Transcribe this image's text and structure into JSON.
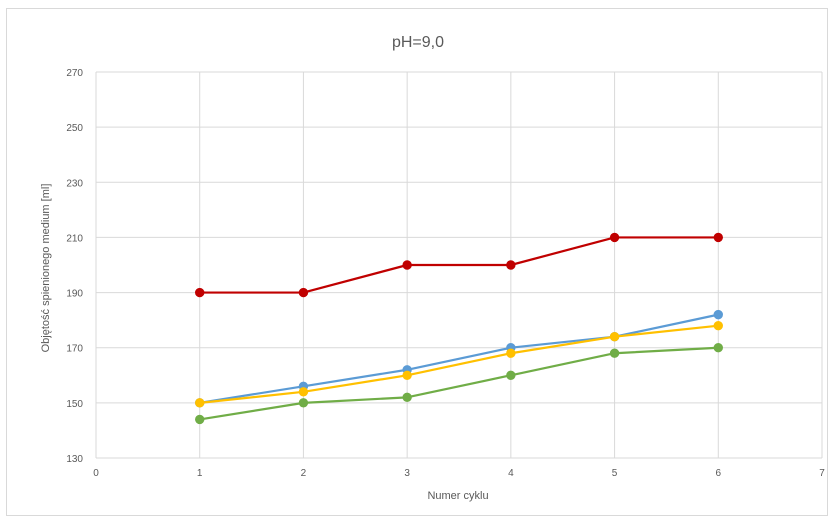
{
  "chart_data": {
    "type": "line",
    "title": "pH=9,0",
    "xlabel": "Numer cyklu",
    "ylabel": "Objętość spienionego medium [ml]",
    "xlim": [
      0,
      7
    ],
    "ylim": [
      130,
      270
    ],
    "x_ticks": [
      "0",
      "1",
      "2",
      "3",
      "4",
      "5",
      "6",
      "7"
    ],
    "y_ticks": [
      "130",
      "150",
      "170",
      "190",
      "210",
      "230",
      "250",
      "270"
    ],
    "grid": true,
    "x": [
      1,
      2,
      3,
      4,
      5,
      6
    ],
    "series": [
      {
        "color": "#c00000",
        "values": [
          190,
          190,
          200,
          200,
          210,
          210
        ]
      },
      {
        "color": "#5b9bd5",
        "values": [
          150,
          156,
          162,
          170,
          174,
          182
        ]
      },
      {
        "color": "#ffc000",
        "values": [
          150,
          154,
          160,
          168,
          174,
          178
        ]
      },
      {
        "color": "#70ad47",
        "values": [
          144,
          150,
          152,
          160,
          168,
          170
        ]
      }
    ]
  }
}
